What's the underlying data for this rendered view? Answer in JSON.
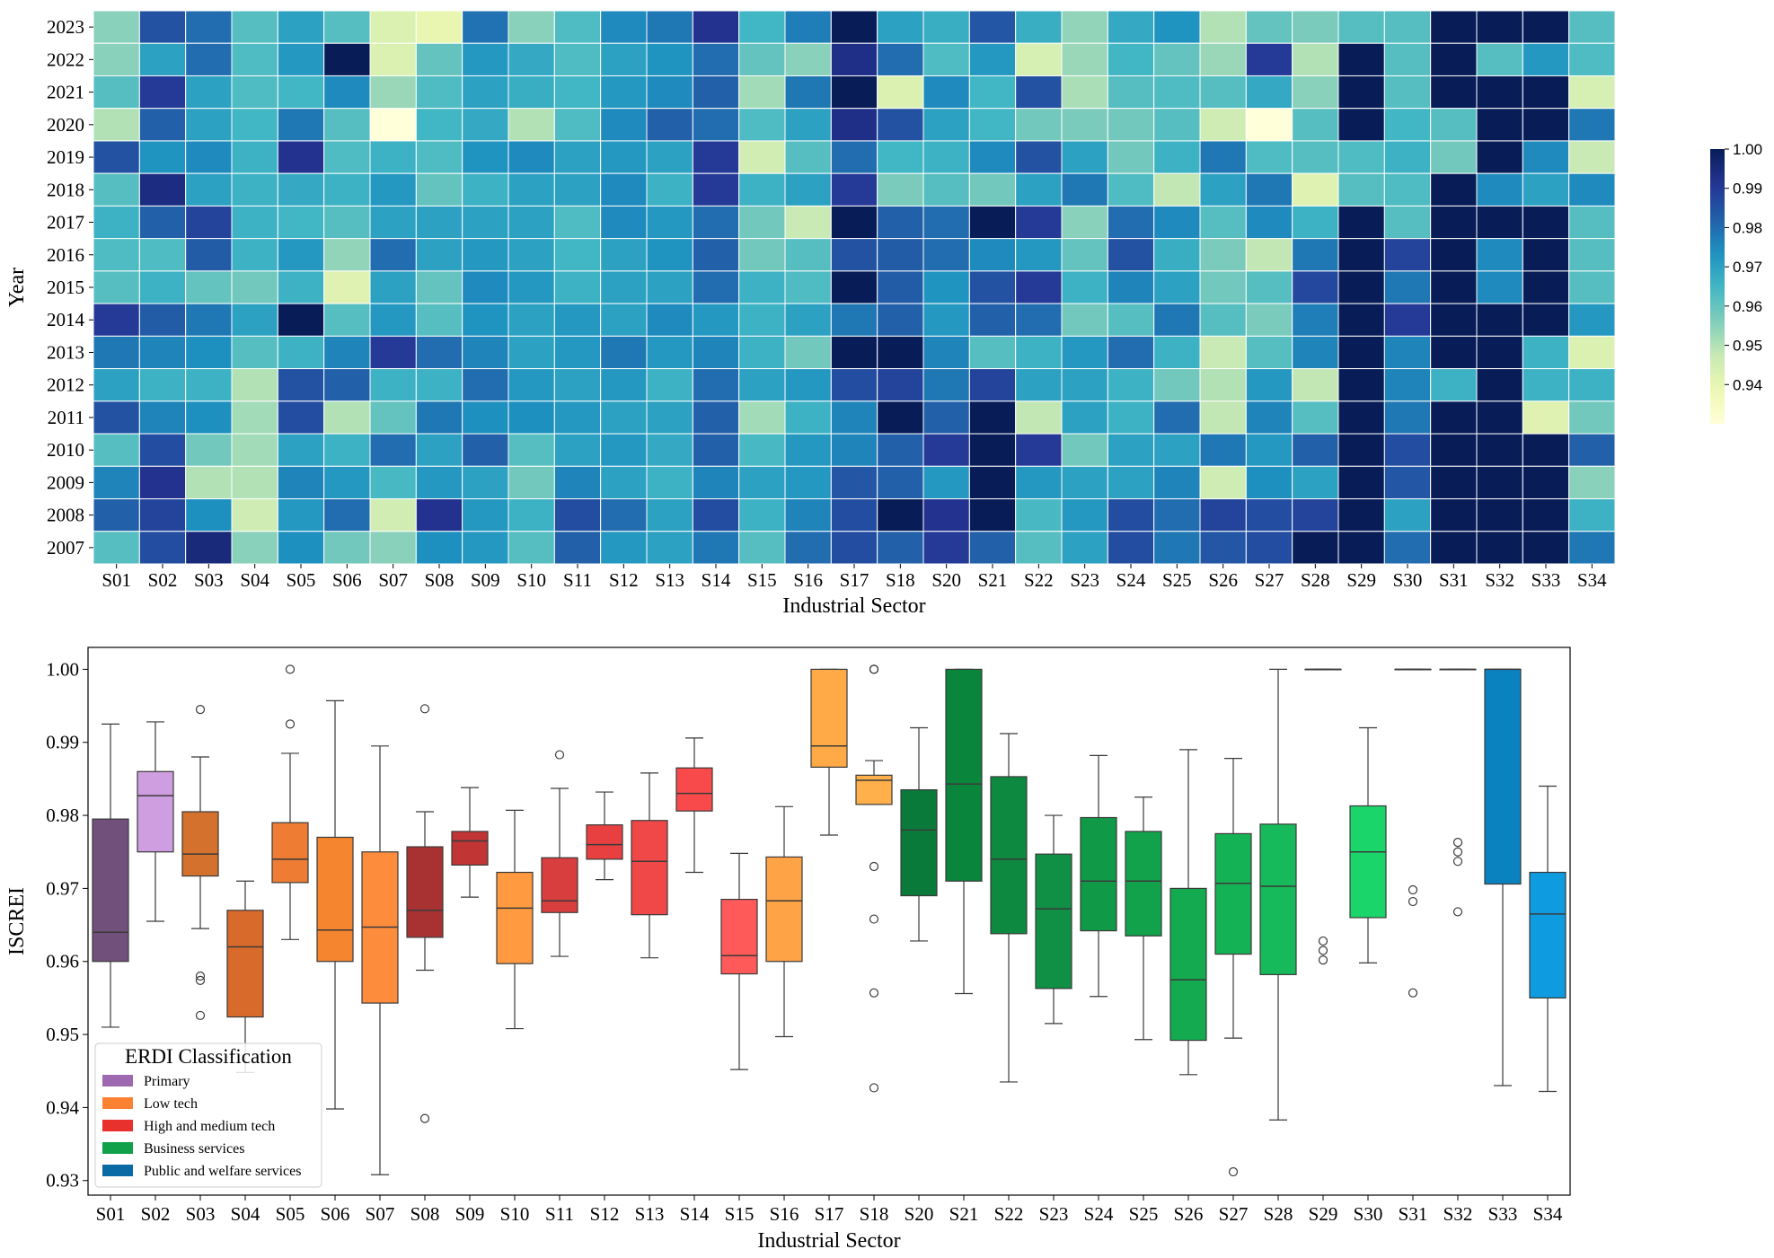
{
  "heatmap": {
    "years": [
      "2023",
      "2022",
      "2021",
      "2020",
      "2019",
      "2018",
      "2017",
      "2016",
      "2015",
      "2014",
      "2013",
      "2012",
      "2011",
      "2010",
      "2009",
      "2008",
      "2007"
    ],
    "sectors": [
      "S01",
      "S02",
      "S03",
      "S04",
      "S05",
      "S06",
      "S07",
      "S08",
      "S09",
      "S10",
      "S11",
      "S12",
      "S13",
      "S14",
      "S15",
      "S16",
      "S17",
      "S18",
      "S20",
      "S21",
      "S22",
      "S23",
      "S24",
      "S25",
      "S26",
      "S27",
      "S28",
      "S29",
      "S30",
      "S31",
      "S32",
      "S33",
      "S34"
    ],
    "values": [
      [
        0.955,
        0.985,
        0.98,
        0.962,
        0.97,
        0.962,
        0.943,
        0.94,
        0.979,
        0.955,
        0.963,
        0.975,
        0.978,
        0.992,
        0.965,
        0.977,
        1.0,
        0.97,
        0.967,
        0.984,
        0.967,
        0.954,
        0.968,
        0.973,
        0.95,
        0.96,
        0.957,
        0.962,
        0.962,
        1.0,
        1.0,
        1.0,
        0.962
      ],
      [
        0.955,
        0.97,
        0.98,
        0.963,
        0.972,
        1.0,
        0.943,
        0.96,
        0.972,
        0.968,
        0.963,
        0.97,
        0.973,
        0.98,
        0.96,
        0.955,
        0.993,
        0.98,
        0.963,
        0.972,
        0.944,
        0.953,
        0.965,
        0.96,
        0.953,
        0.99,
        0.95,
        1.0,
        0.962,
        1.0,
        0.962,
        0.972,
        0.963
      ],
      [
        0.962,
        0.99,
        0.97,
        0.963,
        0.965,
        0.975,
        0.953,
        0.963,
        0.97,
        0.967,
        0.965,
        0.972,
        0.975,
        0.982,
        0.952,
        0.978,
        1.0,
        0.943,
        0.975,
        0.965,
        0.985,
        0.951,
        0.962,
        0.963,
        0.962,
        0.968,
        0.955,
        1.0,
        0.962,
        1.0,
        1.0,
        1.0,
        0.944
      ],
      [
        0.95,
        0.982,
        0.97,
        0.965,
        0.978,
        0.962,
        0.93,
        0.965,
        0.968,
        0.95,
        0.963,
        0.975,
        0.982,
        0.98,
        0.963,
        0.97,
        0.993,
        0.985,
        0.97,
        0.965,
        0.958,
        0.957,
        0.958,
        0.962,
        0.946,
        0.93,
        0.962,
        1.0,
        0.965,
        0.962,
        1.0,
        1.0,
        0.978
      ],
      [
        0.985,
        0.973,
        0.975,
        0.966,
        0.992,
        0.963,
        0.966,
        0.963,
        0.973,
        0.975,
        0.97,
        0.972,
        0.97,
        0.99,
        0.945,
        0.962,
        0.98,
        0.965,
        0.966,
        0.975,
        0.985,
        0.97,
        0.958,
        0.966,
        0.978,
        0.963,
        0.962,
        0.963,
        0.966,
        0.958,
        1.0,
        0.975,
        0.947
      ],
      [
        0.962,
        0.994,
        0.97,
        0.966,
        0.968,
        0.966,
        0.972,
        0.96,
        0.966,
        0.97,
        0.97,
        0.975,
        0.966,
        0.99,
        0.966,
        0.97,
        0.99,
        0.957,
        0.962,
        0.958,
        0.97,
        0.978,
        0.963,
        0.948,
        0.97,
        0.978,
        0.942,
        0.962,
        0.963,
        1.0,
        0.975,
        0.97,
        0.975
      ],
      [
        0.966,
        0.982,
        0.988,
        0.966,
        0.965,
        0.962,
        0.97,
        0.97,
        0.97,
        0.97,
        0.963,
        0.975,
        0.972,
        0.98,
        0.958,
        0.947,
        1.0,
        0.982,
        0.98,
        1.0,
        0.99,
        0.955,
        0.98,
        0.975,
        0.962,
        0.975,
        0.966,
        1.0,
        0.962,
        1.0,
        1.0,
        1.0,
        0.962
      ],
      [
        0.963,
        0.963,
        0.983,
        0.966,
        0.972,
        0.954,
        0.98,
        0.97,
        0.972,
        0.97,
        0.965,
        0.97,
        0.973,
        0.982,
        0.958,
        0.962,
        0.985,
        0.983,
        0.98,
        0.975,
        0.972,
        0.96,
        0.985,
        0.967,
        0.957,
        0.948,
        0.978,
        1.0,
        0.988,
        1.0,
        0.975,
        1.0,
        0.962
      ],
      [
        0.962,
        0.966,
        0.96,
        0.958,
        0.966,
        0.942,
        0.97,
        0.96,
        0.975,
        0.972,
        0.966,
        0.97,
        0.97,
        0.98,
        0.966,
        0.963,
        1.0,
        0.983,
        0.973,
        0.985,
        0.99,
        0.966,
        0.976,
        0.97,
        0.958,
        0.962,
        0.987,
        1.0,
        0.978,
        1.0,
        0.975,
        1.0,
        0.962
      ],
      [
        0.99,
        0.983,
        0.978,
        0.97,
        1.0,
        0.962,
        0.972,
        0.962,
        0.973,
        0.97,
        0.972,
        0.97,
        0.975,
        0.972,
        0.966,
        0.97,
        0.978,
        0.982,
        0.972,
        0.982,
        0.98,
        0.958,
        0.962,
        0.978,
        0.962,
        0.957,
        0.977,
        1.0,
        0.99,
        1.0,
        1.0,
        1.0,
        0.972
      ],
      [
        0.978,
        0.976,
        0.974,
        0.962,
        0.966,
        0.976,
        0.99,
        0.98,
        0.976,
        0.97,
        0.972,
        0.978,
        0.972,
        0.976,
        0.966,
        0.958,
        1.0,
        1.0,
        0.976,
        0.962,
        0.966,
        0.972,
        0.98,
        0.966,
        0.947,
        0.962,
        0.976,
        1.0,
        0.976,
        1.0,
        1.0,
        0.966,
        0.943
      ],
      [
        0.97,
        0.966,
        0.966,
        0.95,
        0.985,
        0.982,
        0.966,
        0.966,
        0.98,
        0.972,
        0.97,
        0.972,
        0.966,
        0.98,
        0.97,
        0.972,
        0.986,
        0.988,
        0.978,
        0.988,
        0.97,
        0.97,
        0.966,
        0.958,
        0.95,
        0.972,
        0.948,
        1.0,
        0.976,
        0.966,
        1.0,
        0.966,
        0.966
      ],
      [
        0.985,
        0.976,
        0.974,
        0.952,
        0.986,
        0.95,
        0.96,
        0.978,
        0.974,
        0.974,
        0.972,
        0.97,
        0.97,
        0.982,
        0.952,
        0.966,
        0.976,
        1.0,
        0.982,
        1.0,
        0.948,
        0.97,
        0.966,
        0.98,
        0.948,
        0.976,
        0.962,
        1.0,
        0.978,
        1.0,
        1.0,
        0.942,
        0.958
      ],
      [
        0.962,
        0.986,
        0.958,
        0.952,
        0.97,
        0.966,
        0.98,
        0.97,
        0.982,
        0.962,
        0.97,
        0.972,
        0.968,
        0.982,
        0.964,
        0.972,
        0.976,
        0.982,
        0.99,
        1.0,
        0.99,
        0.958,
        0.97,
        0.97,
        0.978,
        0.972,
        0.982,
        1.0,
        0.986,
        1.0,
        1.0,
        1.0,
        0.982
      ],
      [
        0.976,
        0.992,
        0.95,
        0.95,
        0.976,
        0.972,
        0.964,
        0.972,
        0.97,
        0.958,
        0.976,
        0.97,
        0.966,
        0.976,
        0.97,
        0.972,
        0.984,
        0.982,
        0.972,
        1.0,
        0.972,
        0.97,
        0.97,
        0.976,
        0.946,
        0.974,
        0.97,
        1.0,
        0.984,
        1.0,
        1.0,
        1.0,
        0.955
      ],
      [
        0.982,
        0.988,
        0.974,
        0.946,
        0.972,
        0.98,
        0.945,
        0.992,
        0.972,
        0.966,
        0.986,
        0.98,
        0.97,
        0.986,
        0.966,
        0.976,
        0.986,
        1.0,
        0.992,
        1.0,
        0.964,
        0.972,
        0.986,
        0.98,
        0.988,
        0.986,
        0.988,
        1.0,
        0.97,
        1.0,
        1.0,
        1.0,
        0.966
      ],
      [
        0.962,
        0.986,
        0.995,
        0.955,
        0.974,
        0.958,
        0.955,
        0.974,
        0.972,
        0.962,
        0.982,
        0.972,
        0.97,
        0.978,
        0.962,
        0.98,
        0.986,
        0.982,
        0.99,
        0.982,
        0.962,
        0.97,
        0.986,
        0.978,
        0.984,
        0.986,
        1.0,
        1.0,
        0.98,
        1.0,
        1.0,
        1.0,
        0.978
      ]
    ],
    "xlabel": "Industrial Sector",
    "ylabel": "Year",
    "colorbar": {
      "min": 0.93,
      "max": 1.0,
      "ticks": [
        "1.00",
        "0.99",
        "0.98",
        "0.97",
        "0.96",
        "0.95",
        "0.94"
      ],
      "tick_values": [
        1.0,
        0.99,
        0.98,
        0.97,
        0.96,
        0.95,
        0.94
      ],
      "colormap": "YlGnBu"
    }
  },
  "chart_data": [
    {
      "type": "heatmap",
      "title": "",
      "xlabel": "Industrial Sector",
      "ylabel": "Year",
      "note": "cell values are in heatmap.values",
      "value_range": [
        0.93,
        1.0
      ],
      "colormap": "YlGnBu",
      "colorbar_placement": "right"
    },
    {
      "type": "box",
      "title": "",
      "xlabel": "Industrial Sector",
      "ylabel": "ISCREI",
      "ylim": [
        0.928,
        1.003
      ],
      "yticks": [
        "1.00",
        "0.99",
        "0.98",
        "0.97",
        "0.96",
        "0.95",
        "0.94",
        "0.93"
      ],
      "ytick_values": [
        1.0,
        0.99,
        0.98,
        0.97,
        0.96,
        0.95,
        0.94,
        0.93
      ],
      "legend_placement": "bottom-left",
      "legend_title": "ERDI Classification",
      "legend": [
        {
          "label": "Primary",
          "color": "#9e69b0"
        },
        {
          "label": "Low tech",
          "color": "#fb8233"
        },
        {
          "label": "High and medium tech",
          "color": "#e8302c"
        },
        {
          "label": "Business services",
          "color": "#10a14a"
        },
        {
          "label": "Public and welfare services",
          "color": "#0a6aa4"
        }
      ],
      "boxes": [
        {
          "sector": "S01",
          "color": "#72507c",
          "whislo": 0.951,
          "q1": 0.96,
          "median": 0.964,
          "q3": 0.9795,
          "whishi": 0.9925,
          "fliers": []
        },
        {
          "sector": "S02",
          "color": "#cf9ee0",
          "whislo": 0.9655,
          "q1": 0.975,
          "median": 0.9827,
          "q3": 0.986,
          "whishi": 0.9928,
          "fliers": []
        },
        {
          "sector": "S03",
          "color": "#d4712c",
          "whislo": 0.9645,
          "q1": 0.9717,
          "median": 0.9747,
          "q3": 0.9805,
          "whishi": 0.988,
          "fliers": [
            0.9945,
            0.958,
            0.9574,
            0.9526
          ]
        },
        {
          "sector": "S04",
          "color": "#d86a2b",
          "whislo": 0.9448,
          "q1": 0.9524,
          "median": 0.962,
          "q3": 0.967,
          "whishi": 0.971,
          "fliers": []
        },
        {
          "sector": "S05",
          "color": "#ee7d33",
          "whislo": 0.963,
          "q1": 0.9708,
          "median": 0.974,
          "q3": 0.979,
          "whishi": 0.9885,
          "fliers": [
            1.0,
            0.9925
          ]
        },
        {
          "sector": "S06",
          "color": "#f5862f",
          "whislo": 0.9398,
          "q1": 0.96,
          "median": 0.9643,
          "q3": 0.977,
          "whishi": 0.9957,
          "fliers": []
        },
        {
          "sector": "S07",
          "color": "#fd8d3c",
          "whislo": 0.9308,
          "q1": 0.9543,
          "median": 0.9647,
          "q3": 0.975,
          "whishi": 0.9895,
          "fliers": []
        },
        {
          "sector": "S08",
          "color": "#a83232",
          "whislo": 0.9588,
          "q1": 0.9633,
          "median": 0.967,
          "q3": 0.9757,
          "whishi": 0.9805,
          "fliers": [
            0.9946,
            0.9385
          ]
        },
        {
          "sector": "S09",
          "color": "#c23535",
          "whislo": 0.9688,
          "q1": 0.9732,
          "median": 0.9765,
          "q3": 0.9778,
          "whishi": 0.9838,
          "fliers": []
        },
        {
          "sector": "S10",
          "color": "#ff9a40",
          "whislo": 0.9508,
          "q1": 0.9597,
          "median": 0.9673,
          "q3": 0.9722,
          "whishi": 0.9807,
          "fliers": []
        },
        {
          "sector": "S11",
          "color": "#d93e3e",
          "whislo": 0.9607,
          "q1": 0.9667,
          "median": 0.9683,
          "q3": 0.9742,
          "whishi": 0.9837,
          "fliers": [
            0.9883
          ]
        },
        {
          "sector": "S12",
          "color": "#e84040",
          "whislo": 0.9712,
          "q1": 0.974,
          "median": 0.976,
          "q3": 0.9787,
          "whishi": 0.9832,
          "fliers": []
        },
        {
          "sector": "S13",
          "color": "#f04848",
          "whislo": 0.9605,
          "q1": 0.9664,
          "median": 0.9737,
          "q3": 0.9793,
          "whishi": 0.9858,
          "fliers": []
        },
        {
          "sector": "S14",
          "color": "#f84a4a",
          "whislo": 0.9722,
          "q1": 0.9806,
          "median": 0.983,
          "q3": 0.9865,
          "whishi": 0.9906,
          "fliers": []
        },
        {
          "sector": "S15",
          "color": "#ff5a5a",
          "whislo": 0.9452,
          "q1": 0.9583,
          "median": 0.9608,
          "q3": 0.9685,
          "whishi": 0.9748,
          "fliers": []
        },
        {
          "sector": "S16",
          "color": "#ffa347",
          "whislo": 0.9497,
          "q1": 0.96,
          "median": 0.9683,
          "q3": 0.9743,
          "whishi": 0.9812,
          "fliers": []
        },
        {
          "sector": "S17",
          "color": "#ffa947",
          "whislo": 0.9773,
          "q1": 0.9866,
          "median": 0.9895,
          "q3": 1.0,
          "whishi": 1.0,
          "fliers": []
        },
        {
          "sector": "S18",
          "color": "#ffb04a",
          "whislo": 0.9815,
          "q1": 0.9815,
          "median": 0.9848,
          "q3": 0.9855,
          "whishi": 0.9875,
          "fliers": [
            1.0,
            1.0,
            0.973,
            0.9658,
            0.9557,
            0.9427
          ]
        },
        {
          "sector": "S20",
          "color": "#0a7a3a",
          "whislo": 0.9628,
          "q1": 0.969,
          "median": 0.978,
          "q3": 0.9835,
          "whishi": 0.992,
          "fliers": []
        },
        {
          "sector": "S21",
          "color": "#0a853c",
          "whislo": 0.9556,
          "q1": 0.971,
          "median": 0.9843,
          "q3": 1.0,
          "whishi": 1.0,
          "fliers": []
        },
        {
          "sector": "S22",
          "color": "#0d8a40",
          "whislo": 0.9435,
          "q1": 0.9638,
          "median": 0.974,
          "q3": 0.9853,
          "whishi": 0.9912,
          "fliers": []
        },
        {
          "sector": "S23",
          "color": "#0f9044",
          "whislo": 0.9515,
          "q1": 0.9563,
          "median": 0.9672,
          "q3": 0.9747,
          "whishi": 0.98,
          "fliers": []
        },
        {
          "sector": "S24",
          "color": "#109a48",
          "whislo": 0.9552,
          "q1": 0.9642,
          "median": 0.971,
          "q3": 0.9797,
          "whishi": 0.9882,
          "fliers": []
        },
        {
          "sector": "S25",
          "color": "#12a24c",
          "whislo": 0.9493,
          "q1": 0.9635,
          "median": 0.971,
          "q3": 0.9778,
          "whishi": 0.9825,
          "fliers": []
        },
        {
          "sector": "S26",
          "color": "#14aa50",
          "whislo": 0.9445,
          "q1": 0.9492,
          "median": 0.9575,
          "q3": 0.97,
          "whishi": 0.989,
          "fliers": []
        },
        {
          "sector": "S27",
          "color": "#15b255",
          "whislo": 0.9495,
          "q1": 0.961,
          "median": 0.9707,
          "q3": 0.9775,
          "whishi": 0.9878,
          "fliers": [
            0.9312
          ]
        },
        {
          "sector": "S28",
          "color": "#17ba5a",
          "whislo": 0.9383,
          "q1": 0.9582,
          "median": 0.9703,
          "q3": 0.9788,
          "whishi": 1.0,
          "fliers": []
        },
        {
          "sector": "S29",
          "color": "#18c25e",
          "whislo": 1.0,
          "q1": 1.0,
          "median": 1.0,
          "q3": 1.0,
          "whishi": 1.0,
          "fliers": [
            0.9628,
            0.9615,
            0.9602
          ]
        },
        {
          "sector": "S30",
          "color": "#1ad66a",
          "whislo": 0.9598,
          "q1": 0.966,
          "median": 0.975,
          "q3": 0.9813,
          "whishi": 0.992,
          "fliers": []
        },
        {
          "sector": "S31",
          "color": "#1cd86c",
          "whislo": 1.0,
          "q1": 1.0,
          "median": 1.0,
          "q3": 1.0,
          "whishi": 1.0,
          "fliers": [
            0.9698,
            0.9682,
            0.9557
          ]
        },
        {
          "sector": "S32",
          "color": "#1ed96e",
          "whislo": 1.0,
          "q1": 1.0,
          "median": 1.0,
          "q3": 1.0,
          "whishi": 1.0,
          "fliers": [
            0.9763,
            0.975,
            0.9737,
            0.9668
          ]
        },
        {
          "sector": "S33",
          "color": "#0a82c0",
          "whislo": 0.943,
          "q1": 0.9706,
          "median": 1.0,
          "q3": 1.0,
          "whishi": 1.0,
          "fliers": []
        },
        {
          "sector": "S34",
          "color": "#0e9be0",
          "whislo": 0.9422,
          "q1": 0.955,
          "median": 0.9665,
          "q3": 0.9722,
          "whishi": 0.984,
          "fliers": []
        }
      ]
    }
  ]
}
